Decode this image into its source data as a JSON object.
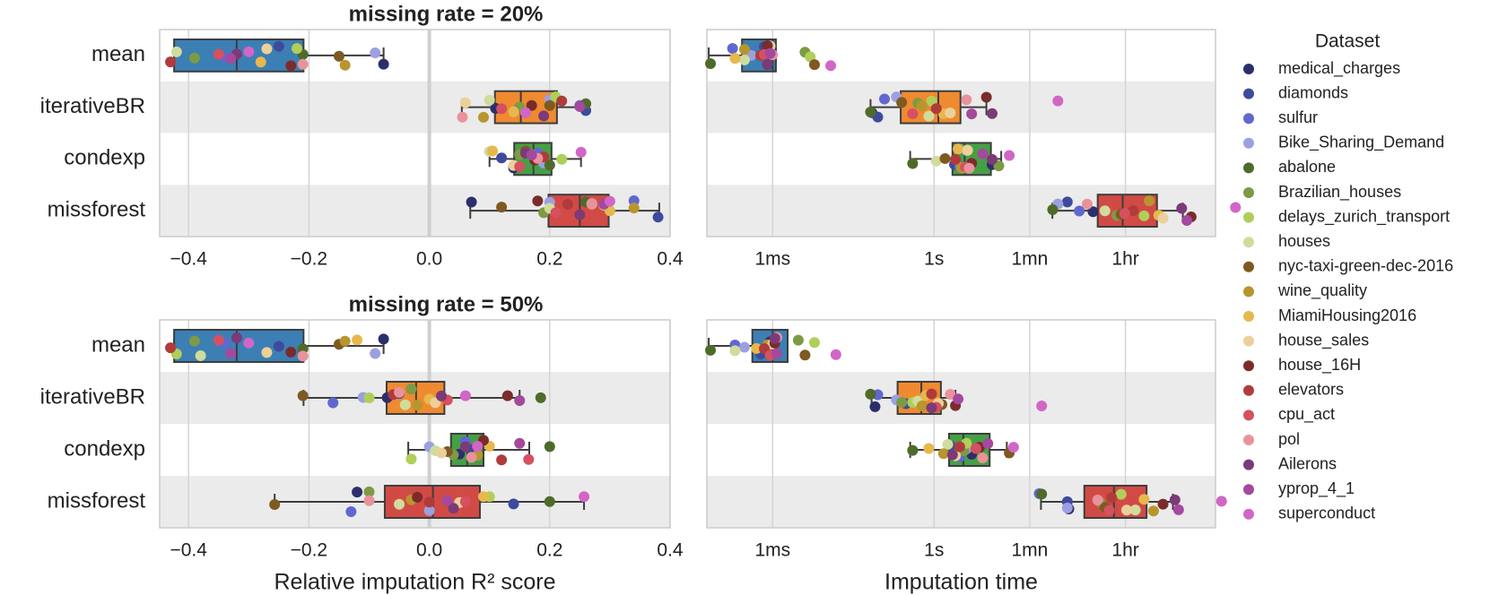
{
  "chart_data": [
    {
      "type": "box",
      "title": "missing rate = 20%",
      "categories": [
        "mean",
        "iterativeBR",
        "condexp",
        "missforest"
      ],
      "box_colors": [
        "#3b7fb5",
        "#ef8a30",
        "#45a045",
        "#d24a45"
      ],
      "xlim": [
        -0.448,
        0.4
      ],
      "log": false,
      "grid": true,
      "xticks": [
        {
          "value": -0.4,
          "label": "−0.4"
        },
        {
          "value": -0.2,
          "label": "−0.2"
        },
        {
          "value": 0,
          "label": "0.0"
        },
        0.2,
        0.4
      ],
      "boxes": [
        {
          "whislo": -0.424,
          "q1": -0.424,
          "med": -0.32,
          "q3": -0.209,
          "whishi": -0.076
        },
        {
          "whislo": 0.054,
          "q1": 0.109,
          "med": 0.152,
          "q3": 0.212,
          "whishi": 0.261
        },
        {
          "whislo": 0.1,
          "q1": 0.141,
          "med": 0.173,
          "q3": 0.203,
          "whishi": 0.252
        },
        {
          "whislo": 0.068,
          "q1": 0.198,
          "med": 0.25,
          "q3": 0.298,
          "whishi": 0.382
        }
      ],
      "points": [
        [
          -0.076,
          -0.25,
          -0.34,
          -0.09,
          -0.21,
          -0.39,
          -0.22,
          -0.42,
          -0.15,
          -0.14,
          -0.28,
          -0.27,
          -0.23,
          -0.43,
          -0.35,
          -0.21,
          -0.32,
          -0.33,
          -0.3
        ],
        [
          0.11,
          0.26,
          0.25,
          0.2,
          0.26,
          0.15,
          0.21,
          0.1,
          0.2,
          0.09,
          0.14,
          0.06,
          0.17,
          0.22,
          0.12,
          0.055,
          0.19,
          0.25,
          0.16
        ],
        [
          0.14,
          0.12,
          0.18,
          0.19,
          0.2,
          0.15,
          0.22,
          0.1,
          0.16,
          0.17,
          0.105,
          0.14,
          0.175,
          0.19,
          0.15,
          0.18,
          0.16,
          0.17,
          0.252
        ],
        [
          0.07,
          0.38,
          0.34,
          0.2,
          0.26,
          0.19,
          0.29,
          0.2,
          0.12,
          0.34,
          0.3,
          0.27,
          0.18,
          0.23,
          0.21,
          0.27,
          0.25,
          0.29,
          0.3
        ]
      ]
    },
    {
      "type": "box",
      "box_colors": [
        "#3b7fb5",
        "#ef8a30",
        "#45a045",
        "#d24a45"
      ],
      "xlim": [
        6e-05,
        170000
      ],
      "log": true,
      "grid": true,
      "xticks": [
        {
          "value": 0.001,
          "label": "1ms"
        },
        {
          "value": 1,
          "label": "1s"
        },
        {
          "value": 60,
          "label": "1mn"
        },
        {
          "value": 3600,
          "label": "1hr"
        }
      ],
      "boxes": [
        {
          "whislo": 6.5e-05,
          "q1": 0.00027,
          "med": 0.001,
          "q3": 0.00115,
          "whishi": 0.00115
        },
        {
          "whislo": 0.066,
          "q1": 0.24,
          "med": 1.2,
          "q3": 3.1,
          "whishi": 9.4
        },
        {
          "whislo": 0.36,
          "q1": 2.2,
          "med": 3.7,
          "q3": 11.4,
          "whishi": 17.7
        },
        {
          "whislo": 158,
          "q1": 1100,
          "med": 3200,
          "q3": 13900,
          "whishi": 42000
        }
      ],
      "points": [
        [
          0.0008,
          0.0007,
          0.00018,
          0.0004,
          7e-05,
          0.004,
          0.005,
          0.0003,
          0.006,
          0.0003,
          0.0002,
          0.0009,
          0.0008,
          0.0006,
          0.0007,
          0.001,
          0.0008,
          0.0009,
          0.012
        ],
        [
          0.07,
          0.09,
          0.12,
          0.2,
          0.066,
          0.5,
          0.9,
          0.8,
          0.25,
          0.6,
          1.5,
          2,
          9.4,
          1.1,
          0.4,
          4,
          12,
          5,
          200
        ],
        [
          12,
          2.4,
          3,
          4,
          0.4,
          16,
          3.5,
          1.1,
          1.6,
          3.2,
          2.8,
          4.2,
          5,
          2.5,
          3.8,
          4.5,
          12,
          8,
          25
        ],
        [
          900,
          300,
          500,
          200,
          160,
          2500,
          8000,
          1500,
          3000,
          10000,
          15000,
          18000,
          60000,
          5000,
          3500,
          700,
          40000,
          50000,
          400000
        ]
      ]
    },
    {
      "type": "box",
      "title": "missing rate = 50%",
      "categories": [
        "mean",
        "iterativeBR",
        "condexp",
        "missforest"
      ],
      "box_colors": [
        "#3b7fb5",
        "#ef8a30",
        "#45a045",
        "#d24a45"
      ],
      "xlim": [
        -0.448,
        0.4
      ],
      "log": false,
      "grid": true,
      "xlabel": "Relative imputation R² score",
      "xticks": [
        {
          "value": -0.4,
          "label": "−0.4"
        },
        {
          "value": -0.2,
          "label": "−0.2"
        },
        {
          "value": 0,
          "label": "0.0"
        },
        0.2,
        0.4
      ],
      "boxes": [
        {
          "whislo": -0.424,
          "q1": -0.424,
          "med": -0.32,
          "q3": -0.209,
          "whishi": -0.076
        },
        {
          "whislo": -0.209,
          "q1": -0.071,
          "med": -0.022,
          "q3": 0.025,
          "whishi": 0.15
        },
        {
          "whislo": -0.035,
          "q1": 0.036,
          "med": 0.063,
          "q3": 0.09,
          "whishi": 0.166
        },
        {
          "whislo": -0.257,
          "q1": -0.074,
          "med": 0.006,
          "q3": 0.084,
          "whishi": 0.257
        }
      ],
      "points": [
        [
          -0.076,
          -0.25,
          -0.34,
          -0.09,
          -0.21,
          -0.39,
          -0.42,
          -0.38,
          -0.15,
          -0.14,
          -0.12,
          -0.27,
          -0.23,
          -0.43,
          -0.35,
          -0.21,
          -0.32,
          -0.33,
          -0.3
        ],
        [
          -0.07,
          -0.05,
          -0.16,
          -0.11,
          0.185,
          -0.03,
          -0.1,
          -0.04,
          -0.21,
          -0.02,
          0,
          0.01,
          0.13,
          -0.06,
          0.03,
          -0.05,
          0.02,
          0.15,
          0.06
        ],
        [
          0.05,
          0.07,
          0.06,
          0,
          0.2,
          0.04,
          -0.03,
          0.01,
          0.03,
          0.08,
          0.1,
          0.02,
          0.09,
          0.12,
          0.165,
          0.07,
          0.06,
          0.15,
          0.08
        ],
        [
          -0.12,
          0.14,
          -0.13,
          0,
          0.2,
          -0.1,
          0.1,
          -0.05,
          -0.257,
          -0.03,
          0.09,
          0.05,
          -0.02,
          0,
          0.06,
          -0.1,
          0.04,
          0.03,
          0.257
        ]
      ]
    },
    {
      "type": "box",
      "box_colors": [
        "#3b7fb5",
        "#ef8a30",
        "#45a045",
        "#d24a45"
      ],
      "xlim": [
        6e-05,
        170000
      ],
      "log": true,
      "grid": true,
      "xlabel": "Imputation time",
      "xticks": [
        {
          "value": 0.001,
          "label": "1ms"
        },
        {
          "value": 1,
          "label": "1s"
        },
        {
          "value": 60,
          "label": "1mn"
        },
        {
          "value": 3600,
          "label": "1hr"
        }
      ],
      "boxes": [
        {
          "whislo": 6.5e-05,
          "q1": 0.00042,
          "med": 0.001,
          "q3": 0.0019,
          "whishi": 0.0019
        },
        {
          "whislo": 0.069,
          "q1": 0.21,
          "med": 0.58,
          "q3": 1.34,
          "whishi": 2.5
        },
        {
          "whislo": 0.36,
          "q1": 1.9,
          "med": 3.5,
          "q3": 10.8,
          "whishi": 22.5
        },
        {
          "whislo": 97,
          "q1": 620,
          "med": 2200,
          "q3": 8900,
          "whishi": 27500
        }
      ],
      "points": [
        [
          0.0009,
          0.0006,
          0.0002,
          0.0003,
          7e-05,
          0.003,
          0.006,
          0.0002,
          0.004,
          0.0008,
          0.0005,
          0.001,
          0.0011,
          0.0007,
          0.0009,
          0.0012,
          0.0011,
          0.0012,
          0.015
        ],
        [
          0.08,
          0.3,
          0.09,
          0.2,
          0.066,
          0.25,
          0.4,
          0.5,
          1.4,
          0.6,
          0.7,
          1.2,
          2.5,
          0.9,
          1.1,
          2,
          0.9,
          2.8,
          100
        ],
        [
          5,
          2,
          3,
          4,
          0.4,
          3.6,
          4,
          1.8,
          25,
          1.5,
          0.8,
          2.5,
          7,
          3,
          6,
          8,
          2.2,
          10,
          30
        ],
        [
          320,
          300,
          90,
          300,
          100,
          1200,
          3000,
          5500,
          1500,
          12000,
          8000,
          3800,
          18000,
          2000,
          1800,
          1100,
          30000,
          35000,
          220000
        ]
      ]
    }
  ],
  "legend": {
    "title": "Dataset",
    "items": [
      {
        "name": "medical_charges",
        "color": "#2c2f6b"
      },
      {
        "name": "diamonds",
        "color": "#3e4a9e"
      },
      {
        "name": "sulfur",
        "color": "#6068d0"
      },
      {
        "name": "Bike_Sharing_Demand",
        "color": "#9ca0e0"
      },
      {
        "name": "abalone",
        "color": "#4f6b2a"
      },
      {
        "name": "Brazilian_houses",
        "color": "#7d9a45"
      },
      {
        "name": "delays_zurich_transport",
        "color": "#afcf5a"
      },
      {
        "name": "houses",
        "color": "#cfdc9c"
      },
      {
        "name": "nyc-taxi-green-dec-2016",
        "color": "#7e5a22"
      },
      {
        "name": "wine_quality",
        "color": "#b8952e"
      },
      {
        "name": "MiamiHousing2016",
        "color": "#e6b84d"
      },
      {
        "name": "house_sales",
        "color": "#ecd09b"
      },
      {
        "name": "house_16H",
        "color": "#7b2b2b"
      },
      {
        "name": "elevators",
        "color": "#b03b3b"
      },
      {
        "name": "cpu_act",
        "color": "#d55060"
      },
      {
        "name": "pol",
        "color": "#e8939c"
      },
      {
        "name": "Ailerons",
        "color": "#7b3a78"
      },
      {
        "name": "yprop_4_1",
        "color": "#a4499e"
      },
      {
        "name": "superconduct",
        "color": "#d266c6"
      }
    ]
  }
}
